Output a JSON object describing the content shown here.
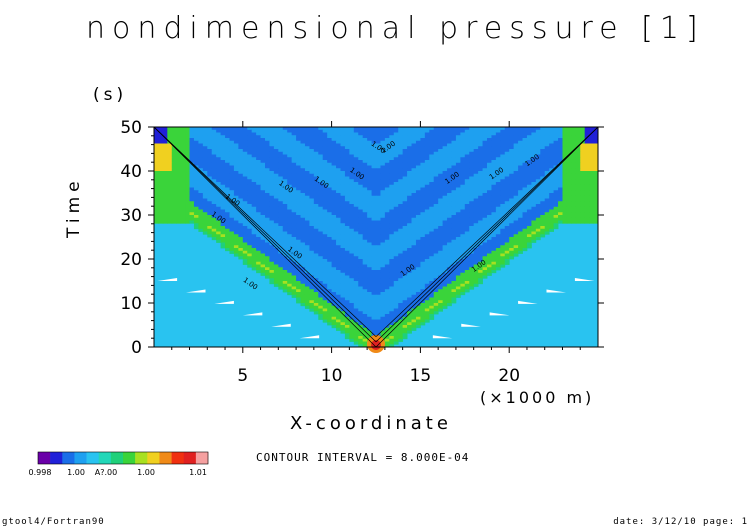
{
  "chart_data": {
    "type": "heatmap",
    "title": "nondimensional pressure [1]",
    "xlabel": "X-coordinate",
    "x_unit": "(×1000 m)",
    "ylabel": "Time",
    "y_unit": "(s)",
    "xlim": [
      0,
      25
    ],
    "ylim": [
      0,
      50
    ],
    "x_ticks": [
      "5",
      "10",
      "15",
      "20"
    ],
    "x_tick_values": [
      5,
      10,
      15,
      20
    ],
    "y_ticks": [
      "0",
      "10",
      "20",
      "30",
      "40",
      "50"
    ],
    "y_tick_values": [
      0,
      10,
      20,
      30,
      40,
      50
    ],
    "contour_interval": "CONTOUR INTERVAL = 8.000E-04",
    "contour_labels": [
      "1.00",
      "1.00",
      "1.00",
      "1.00",
      "1.00",
      "1.00",
      "1.00",
      "1.00",
      "1.00",
      "1.00",
      "1.00",
      "1.00",
      "1.00",
      "1.00"
    ],
    "wave_source_x": 12.5,
    "wave_speed_km_per_s": 0.34,
    "background_value": 1.0,
    "colorbar": {
      "colors": [
        "#6a00a8",
        "#2020d8",
        "#1a6ee8",
        "#1ea0f0",
        "#29c3f0",
        "#22d7b8",
        "#1fd07a",
        "#3ad43a",
        "#a8e020",
        "#f0d020",
        "#f08a18",
        "#f03010",
        "#e02020",
        "#f5a0a0"
      ],
      "labels": [
        "0.998",
        "1.00",
        "A?.00",
        "1.00",
        "1.01"
      ]
    }
  },
  "footer": {
    "left": "gtool4/Fortran90",
    "right": "date: 3/12/10 page: 1"
  }
}
